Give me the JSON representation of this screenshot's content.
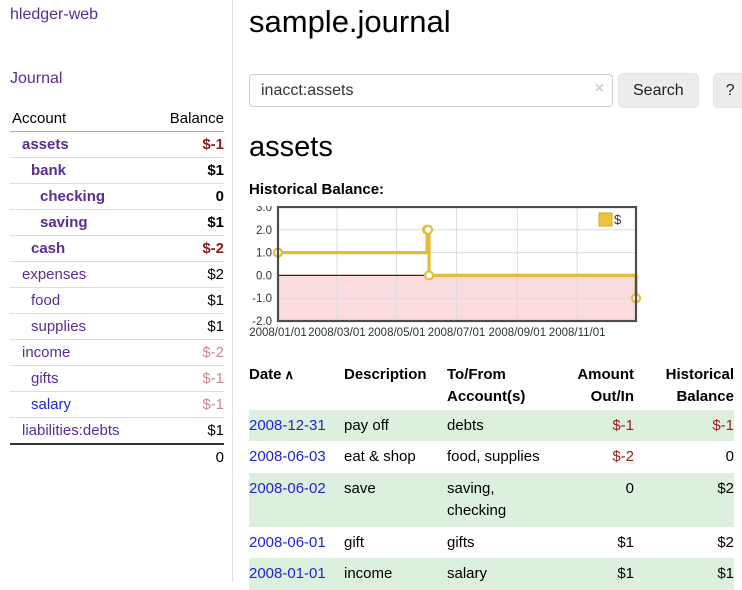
{
  "brand": "hledger-web",
  "nav": {
    "journal": "Journal"
  },
  "sidebar": {
    "account_col": "Account",
    "balance_col": "Balance",
    "rows": [
      {
        "account": "assets",
        "balance": "$-1"
      },
      {
        "account": "bank",
        "balance": "$1"
      },
      {
        "account": "checking",
        "balance": "0"
      },
      {
        "account": "saving",
        "balance": "$1"
      },
      {
        "account": "cash",
        "balance": "$-2"
      },
      {
        "account": "expenses",
        "balance": "$2"
      },
      {
        "account": "food",
        "balance": "$1"
      },
      {
        "account": "supplies",
        "balance": "$1"
      },
      {
        "account": "income",
        "balance": "$-2"
      },
      {
        "account": "gifts",
        "balance": "$-1"
      },
      {
        "account": "salary",
        "balance": "$-1"
      },
      {
        "account": "liabilities:debts",
        "balance": "$1"
      }
    ],
    "total": "0"
  },
  "main": {
    "title": "sample.journal",
    "search": {
      "value": "inacct:assets",
      "clear_icon": "×",
      "search_button": "Search",
      "help_button": "?"
    },
    "account_heading": "assets",
    "register": {
      "headers": {
        "date": "Date",
        "sort_icon": "∧",
        "description": "Description",
        "accounts": "To/From Account(s)",
        "amount": "Amount Out/In",
        "balance": "Historical Balance"
      },
      "rows": [
        {
          "date": "2008-12-31",
          "description": "pay off",
          "accounts": "debts",
          "amount": "$-1",
          "balance": "$-1"
        },
        {
          "date": "2008-06-03",
          "description": "eat & shop",
          "accounts": "food, supplies",
          "amount": "$-2",
          "balance": "0"
        },
        {
          "date": "2008-06-02",
          "description": "save",
          "accounts": "saving, checking",
          "amount": "0",
          "balance": "$2"
        },
        {
          "date": "2008-06-01",
          "description": "gift",
          "accounts": "gifts",
          "amount": "$1",
          "balance": "$2"
        },
        {
          "date": "2008-01-01",
          "description": "income",
          "accounts": "salary",
          "amount": "$1",
          "balance": "$1"
        }
      ]
    }
  },
  "chart_data": {
    "type": "line",
    "title": "Historical Balance:",
    "step": true,
    "x_domain": [
      "2008-01-01",
      "2008-12-31"
    ],
    "ylim": [
      -2,
      3
    ],
    "yticks": [
      3,
      2,
      1,
      0,
      -1,
      -2
    ],
    "xticks": [
      "2008/01/01",
      "2008/03/01",
      "2008/05/01",
      "2008/07/01",
      "2008/09/01",
      "2008/11/01"
    ],
    "series": [
      {
        "name": "$",
        "points": [
          [
            "2008-01-01",
            1
          ],
          [
            "2008-06-01",
            2
          ],
          [
            "2008-06-02",
            2
          ],
          [
            "2008-06-03",
            0
          ],
          [
            "2008-12-31",
            -1
          ]
        ]
      }
    ],
    "legend": {
      "label": "$",
      "position": "top-right"
    },
    "grid": true,
    "colors": {
      "line": "#e5bb3a",
      "legend_fill": "#eac23f",
      "legend_border": "#d9a91f",
      "negative_area": "#fadcdf",
      "zero_line": "#8b0000",
      "grid": "#dcdcdc",
      "border": "#4d4d4d"
    }
  }
}
